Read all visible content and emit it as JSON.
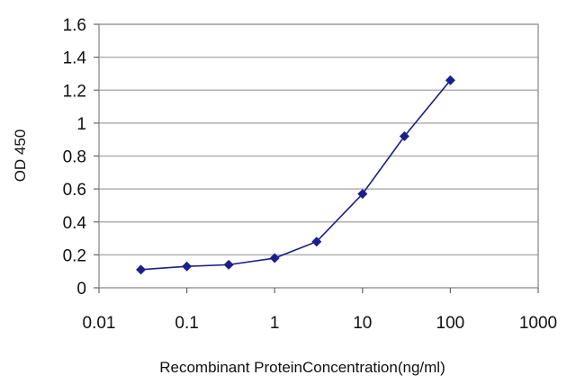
{
  "chart_data": {
    "type": "line",
    "x_scale": "log",
    "xlabel": "Recombinant ProteinConcentration(ng/ml)",
    "ylabel": "OD 450",
    "xlim": [
      0.01,
      1000
    ],
    "ylim": [
      0,
      1.6
    ],
    "x_ticks": [
      "0.01",
      "0.1",
      "1",
      "10",
      "100",
      "1000"
    ],
    "y_ticks": [
      "0",
      "0.2",
      "0.4",
      "0.6",
      "0.8",
      "1",
      "1.2",
      "1.4",
      "1.6"
    ],
    "grid": "horizontal",
    "legend": "none",
    "series": [
      {
        "color": "#1a1f8c",
        "marker": "diamond",
        "points": [
          {
            "x": 0.03,
            "y": 0.11
          },
          {
            "x": 0.1,
            "y": 0.13
          },
          {
            "x": 0.3,
            "y": 0.14
          },
          {
            "x": 1,
            "y": 0.18
          },
          {
            "x": 3,
            "y": 0.28
          },
          {
            "x": 10,
            "y": 0.57
          },
          {
            "x": 30,
            "y": 0.92
          },
          {
            "x": 100,
            "y": 1.26
          }
        ]
      }
    ]
  }
}
